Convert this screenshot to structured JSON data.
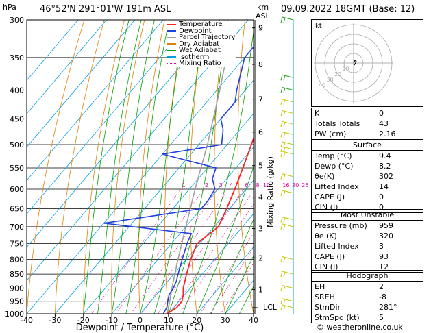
{
  "header": {
    "location": "46°52'N  291°01'W  191m  ASL",
    "datetime": "09.09.2022  18GMT  (Base: 12)"
  },
  "axes": {
    "p_unit": "hPa",
    "km_unit": "km",
    "km_unit2": "ASL",
    "xlabel": "Dewpoint / Temperature (°C)",
    "mixing_label": "Mixing Ratio (g/kg)",
    "lcl_label": "LCL"
  },
  "legend": [
    "Temperature",
    "Dewpoint",
    "Parcel Trajectory",
    "Dry Adiabat",
    "Wet Adiabat",
    "Isotherm",
    "Mixing Ratio"
  ],
  "colors": {
    "temperature": "#ff2020",
    "dewpoint": "#2040e0",
    "parcel": "#a0a0a0",
    "dry_adiabat": "#e08000",
    "wet_adiabat": "#00a000",
    "isotherm": "#00a0e0",
    "mixing_ratio": "#e000a0",
    "wind": "#c8c800"
  },
  "chart_data": {
    "type": "skew-t",
    "pressure_levels": [
      300,
      350,
      400,
      450,
      500,
      550,
      600,
      650,
      700,
      750,
      800,
      850,
      900,
      950,
      1000
    ],
    "temp_ticks": [
      -40,
      -30,
      -20,
      -10,
      0,
      10,
      20,
      30,
      40
    ],
    "km_ticks": [
      {
        "km": "1",
        "p": 905
      },
      {
        "km": "2",
        "p": 795
      },
      {
        "km": "3",
        "p": 705
      },
      {
        "km": "4",
        "p": 620
      },
      {
        "km": "5",
        "p": 545
      },
      {
        "km": "6",
        "p": 475
      },
      {
        "km": "7",
        "p": 415
      },
      {
        "km": "8",
        "p": 360
      },
      {
        "km": "9",
        "p": 310
      }
    ],
    "lcl_p": 975,
    "mixing_ratios": [
      "1",
      "2",
      "3",
      "4",
      "6",
      "8",
      "10",
      "16",
      "20",
      "25"
    ],
    "mixing_label_p": 590,
    "temperature": [
      [
        1000,
        9.4
      ],
      [
        975,
        11
      ],
      [
        950,
        11
      ],
      [
        925,
        9.5
      ],
      [
        900,
        7.5
      ],
      [
        875,
        6
      ],
      [
        850,
        4.5
      ],
      [
        800,
        1.5
      ],
      [
        750,
        -1
      ],
      [
        700,
        1.5
      ],
      [
        650,
        -1
      ],
      [
        600,
        -4
      ],
      [
        550,
        -7.5
      ],
      [
        500,
        -11.5
      ],
      [
        450,
        -16
      ],
      [
        400,
        -21
      ],
      [
        350,
        -27
      ],
      [
        300,
        -34
      ]
    ],
    "dewpoint": [
      [
        1000,
        8.2
      ],
      [
        975,
        7.5
      ],
      [
        950,
        6
      ],
      [
        925,
        4.5
      ],
      [
        900,
        4
      ],
      [
        875,
        3
      ],
      [
        850,
        1.5
      ],
      [
        800,
        -1.5
      ],
      [
        750,
        -4.5
      ],
      [
        720,
        -6
      ],
      [
        690,
        -40
      ],
      [
        650,
        -10
      ],
      [
        630,
        -10
      ],
      [
        600,
        -11
      ],
      [
        575,
        -15
      ],
      [
        550,
        -17
      ],
      [
        520,
        -40
      ],
      [
        500,
        -22
      ],
      [
        470,
        -26
      ],
      [
        450,
        -30
      ],
      [
        420,
        -30
      ],
      [
        400,
        -33
      ],
      [
        350,
        -40
      ],
      [
        330,
        -40
      ],
      [
        300,
        -47
      ]
    ],
    "parcel": [
      [
        1000,
        9.4
      ],
      [
        975,
        8.2
      ],
      [
        900,
        3.5
      ],
      [
        800,
        -3
      ],
      [
        700,
        -10
      ],
      [
        600,
        -18
      ],
      [
        500,
        -27
      ],
      [
        400,
        -39
      ],
      [
        300,
        -55
      ]
    ],
    "wind_barbs": [
      300,
      380,
      400,
      420,
      440,
      460,
      480,
      500,
      510,
      520,
      570,
      610,
      680,
      700,
      800,
      850,
      900,
      950,
      975
    ]
  },
  "hodograph": {
    "unit": "kt",
    "ring_labels": [
      "10",
      "20",
      "30",
      "40"
    ]
  },
  "indices": {
    "rows": [
      {
        "label": "K",
        "value": "0"
      },
      {
        "label": "Totals Totals",
        "value": "43"
      },
      {
        "label": "PW (cm)",
        "value": "2.16"
      }
    ]
  },
  "surface": {
    "title": "Surface",
    "rows": [
      {
        "label": "Temp (°C)",
        "value": "9.4"
      },
      {
        "label": "Dewp (°C)",
        "value": "8.2"
      },
      {
        "label": "θe(K)",
        "value": "302"
      },
      {
        "label": "Lifted Index",
        "value": "14"
      },
      {
        "label": "CAPE (J)",
        "value": "0"
      },
      {
        "label": "CIN (J)",
        "value": "0"
      }
    ]
  },
  "most_unstable": {
    "title": "Most Unstable",
    "rows": [
      {
        "label": "Pressure (mb)",
        "value": "959"
      },
      {
        "label": "θe (K)",
        "value": "320"
      },
      {
        "label": "Lifted Index",
        "value": "3"
      },
      {
        "label": "CAPE (J)",
        "value": "93"
      },
      {
        "label": "CIN (J)",
        "value": "12"
      }
    ]
  },
  "hodograph_table": {
    "title": "Hodograph",
    "rows": [
      {
        "label": "EH",
        "value": "2"
      },
      {
        "label": "SREH",
        "value": "-8"
      },
      {
        "label": "StmDir",
        "value": "281°"
      },
      {
        "label": "StmSpd (kt)",
        "value": "5"
      }
    ]
  },
  "footer": {
    "copyright": "© weatheronline.co.uk"
  }
}
